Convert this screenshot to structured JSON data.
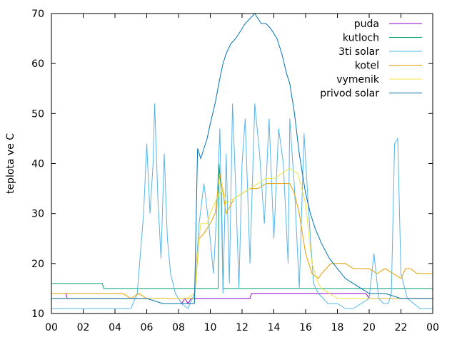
{
  "chart_data": {
    "type": "line",
    "title": "",
    "xlabel": "",
    "ylabel": "teplota ve C",
    "xlim": [
      0,
      24
    ],
    "ylim": [
      10,
      70
    ],
    "xticks": [
      "00",
      "02",
      "04",
      "06",
      "08",
      "10",
      "12",
      "14",
      "16",
      "18",
      "20",
      "22",
      "00"
    ],
    "yticks": [
      "10",
      "20",
      "30",
      "40",
      "50",
      "60",
      "70"
    ],
    "grid": false,
    "legend_position": "top-right",
    "series": [
      {
        "name": "puda",
        "color": "#9400d3",
        "x": [
          0.9,
          1.0,
          8.0,
          8.2,
          8.4,
          8.6,
          8.8,
          9.0,
          12.5,
          12.6,
          19.8,
          20.0,
          24.0
        ],
        "y": [
          14,
          13,
          13,
          12,
          13,
          12,
          13,
          13,
          13,
          14,
          14,
          13,
          13
        ]
      },
      {
        "name": "kutloch",
        "color": "#009e73",
        "x": [
          0,
          3.2,
          3.3,
          9.2,
          9.3,
          10.5,
          10.55,
          10.7,
          10.8,
          24
        ],
        "y": [
          16,
          16,
          15,
          15,
          15,
          15,
          40,
          34,
          15,
          15
        ]
      },
      {
        "name": "3ti solar",
        "color": "#56b4e9",
        "x": [
          0,
          5.0,
          5.4,
          5.8,
          6.0,
          6.2,
          6.4,
          6.5,
          6.7,
          6.9,
          7.1,
          7.3,
          7.5,
          7.8,
          8.2,
          8.6,
          9.0,
          9.3,
          9.6,
          9.9,
          10.2,
          10.4,
          10.6,
          10.8,
          11.0,
          11.2,
          11.4,
          11.6,
          11.8,
          12.0,
          12.2,
          12.5,
          12.8,
          13.1,
          13.4,
          13.7,
          14.0,
          14.3,
          14.6,
          14.9,
          15.0,
          15.3,
          15.6,
          15.9,
          16.2,
          16.5,
          16.8,
          17.1,
          17.4,
          17.7,
          18.0,
          18.5,
          19.0,
          19.5,
          20.0,
          20.3,
          20.6,
          20.9,
          21.2,
          21.4,
          21.6,
          21.8,
          22.0,
          22.4,
          22.8,
          23.2,
          23.6,
          24.0
        ],
        "y": [
          11,
          11,
          14,
          30,
          44,
          30,
          40,
          52,
          33,
          21,
          42,
          25,
          18,
          14,
          12,
          11,
          14,
          28,
          36,
          28,
          18,
          30,
          47,
          14,
          42,
          16,
          52,
          35,
          15,
          40,
          49,
          20,
          52,
          42,
          28,
          49,
          25,
          47,
          40,
          20,
          49,
          35,
          15,
          46,
          30,
          16,
          14,
          13,
          12,
          12,
          12,
          11,
          11,
          12,
          13,
          22,
          13,
          12,
          12,
          14,
          44,
          45,
          18,
          13,
          12,
          11,
          11,
          11
        ]
      },
      {
        "name": "kotel",
        "color": "#e69f00",
        "x": [
          0,
          1.0,
          4.5,
          5.0,
          5.5,
          6.0,
          6.5,
          7.0,
          7.5,
          8.0,
          8.5,
          9.0,
          9.3,
          9.6,
          10.0,
          10.3,
          10.6,
          11.0,
          11.5,
          12.0,
          12.5,
          13.0,
          13.5,
          14.0,
          14.5,
          15.0,
          15.3,
          15.6,
          16.0,
          16.4,
          16.8,
          17.0,
          17.3,
          17.6,
          18.0,
          18.5,
          19.0,
          19.5,
          20.0,
          20.5,
          21.0,
          21.5,
          22.0,
          22.3,
          22.6,
          23.0,
          23.5,
          24.0
        ],
        "y": [
          14,
          14,
          14,
          13,
          14,
          13,
          13,
          13,
          13,
          13,
          13,
          13,
          25,
          26,
          28,
          30,
          38,
          30,
          33,
          34,
          35,
          35,
          36,
          36,
          36,
          36,
          34,
          30,
          22,
          18,
          17,
          18,
          19,
          20,
          20,
          20,
          19,
          19,
          19,
          18,
          19,
          18,
          17,
          19,
          19,
          18,
          18,
          18
        ]
      },
      {
        "name": "vymenik",
        "color": "#f0e442",
        "x": [
          0,
          1.0,
          4.5,
          5.0,
          6.0,
          7.0,
          8.0,
          8.5,
          9.0,
          9.2,
          9.4,
          9.8,
          10.0,
          10.4,
          10.8,
          11.0,
          11.5,
          12.0,
          12.5,
          13.0,
          13.5,
          14.0,
          14.5,
          15.0,
          15.5,
          16.0,
          16.4,
          16.8,
          17.0,
          17.5,
          18.0,
          18.5,
          19.0,
          19.5,
          20.0,
          21.0,
          22.0,
          23.0,
          24.0
        ],
        "y": [
          13,
          13,
          13,
          13,
          13,
          13,
          13,
          13,
          14,
          22,
          28,
          28,
          30,
          33,
          35,
          32,
          33,
          34,
          35,
          36,
          37,
          37,
          38,
          39,
          38,
          32,
          20,
          16,
          15,
          14,
          13,
          13,
          13,
          13,
          13,
          13,
          13,
          13,
          13
        ]
      },
      {
        "name": "privod solar",
        "color": "#0072b2",
        "x": [
          0,
          3.0,
          5.0,
          6.0,
          7.0,
          8.0,
          9.0,
          9.2,
          9.4,
          9.6,
          9.8,
          10.0,
          10.3,
          10.6,
          10.8,
          11.0,
          11.3,
          11.6,
          11.8,
          12.0,
          12.2,
          12.5,
          12.8,
          13.0,
          13.2,
          13.5,
          13.8,
          14.0,
          14.2,
          14.5,
          14.8,
          15.0,
          15.3,
          15.6,
          16.0,
          16.3,
          16.6,
          17.0,
          17.5,
          18.0,
          18.5,
          19.0,
          19.5,
          20.0,
          21.0,
          22.0,
          23.0,
          24.0
        ],
        "y": [
          13,
          13,
          13,
          13,
          12,
          12,
          12,
          43,
          41,
          43,
          45,
          48,
          52,
          57,
          60,
          62,
          64,
          65,
          66,
          67,
          68,
          69,
          70,
          69,
          68,
          68,
          67,
          66,
          65,
          62,
          58,
          56,
          50,
          42,
          34,
          30,
          27,
          24,
          21,
          19,
          17,
          16,
          15,
          14,
          14,
          13,
          13,
          13
        ]
      }
    ]
  }
}
